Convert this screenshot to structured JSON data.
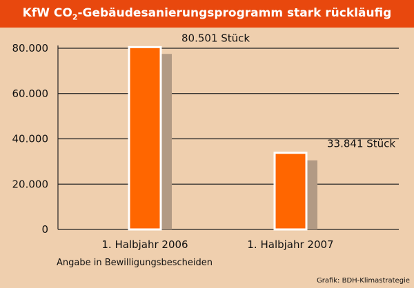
{
  "title": {
    "prefix": "KfW CO",
    "subscript": "2",
    "suffix": "-Gebäudesanierungsprogramm stark rückläufig"
  },
  "note": "Angabe in Bewilligungsbescheiden",
  "credit": "Grafik: BDH-Klimastrategie",
  "colors": {
    "header": "#e8480e",
    "background": "#efcfae",
    "bar": "#ff6600",
    "bar_border": "#ffffff",
    "shadow": "#b29a84",
    "grid": "#222222"
  },
  "chart_data": {
    "type": "bar",
    "categories": [
      "1. Halbjahr 2006",
      "1. Halbjahr 2007"
    ],
    "values": [
      80501,
      33841
    ],
    "shadow_values": [
      77500,
      30500
    ],
    "data_labels": [
      "80.501 Stück",
      "33.841 Stück"
    ],
    "y_ticks": [
      0,
      20000,
      40000,
      60000,
      80000
    ],
    "y_tick_labels": [
      "0",
      "20.000",
      "40.000",
      "60.000",
      "80.000"
    ],
    "ylim": [
      0,
      80000
    ],
    "grid": true,
    "legend": "none"
  }
}
